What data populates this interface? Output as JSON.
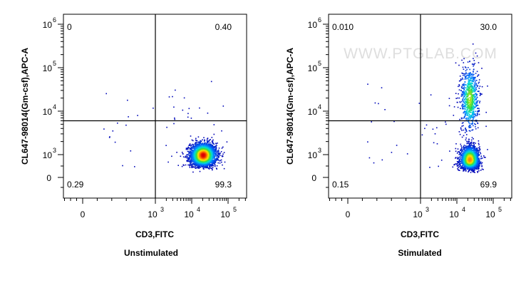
{
  "watermark": "WWW.PTGLAB.COM",
  "chart_data": [
    {
      "type": "scatter",
      "subtitle": "Unstimulated",
      "xlabel": "CD3,FITC",
      "ylabel": "CL647-98014(Gm-csf),APC-A",
      "x_ticks": [
        {
          "label": "0",
          "value": 0
        },
        {
          "label": "10",
          "exp": "3",
          "value": 1000
        },
        {
          "label": "10",
          "exp": "4",
          "value": 10000
        },
        {
          "label": "10",
          "exp": "5",
          "value": 100000
        }
      ],
      "y_ticks": [
        {
          "label": "0",
          "value": 0
        },
        {
          "label": "10",
          "exp": "3",
          "value": 1000
        },
        {
          "label": "10",
          "exp": "4",
          "value": 10000
        },
        {
          "label": "10",
          "exp": "5",
          "value": 100000
        },
        {
          "label": "10",
          "exp": "6",
          "value": 1000000
        }
      ],
      "gate": {
        "x": 1000,
        "y": 6000
      },
      "quadrants": {
        "top_left": "0",
        "top_right": "0.40",
        "bottom_left": "0.29",
        "bottom_right": "99.3"
      },
      "populations": [
        {
          "x_center": 20000,
          "y_center": 1000,
          "x_spread": 0.18,
          "y_spread": 0.14,
          "weight": 1.0
        }
      ]
    },
    {
      "type": "scatter",
      "subtitle": "Stimulated",
      "xlabel": "CD3,FITC",
      "ylabel": "CL647-98014(Gm-csf),APC-A",
      "x_ticks": [
        {
          "label": "0",
          "value": 0
        },
        {
          "label": "10",
          "exp": "3",
          "value": 1000
        },
        {
          "label": "10",
          "exp": "4",
          "value": 10000
        },
        {
          "label": "10",
          "exp": "5",
          "value": 100000
        }
      ],
      "y_ticks": [
        {
          "label": "0",
          "value": 0
        },
        {
          "label": "10",
          "exp": "3",
          "value": 1000
        },
        {
          "label": "10",
          "exp": "4",
          "value": 10000
        },
        {
          "label": "10",
          "exp": "5",
          "value": 100000
        },
        {
          "label": "10",
          "exp": "6",
          "value": 1000000
        }
      ],
      "gate": {
        "x": 1000,
        "y": 6000
      },
      "quadrants": {
        "top_left": "0.010",
        "top_right": "30.0",
        "bottom_left": "0.15",
        "bottom_right": "69.9"
      },
      "populations": [
        {
          "x_center": 22000,
          "y_center": 800,
          "x_spread": 0.13,
          "y_spread": 0.15,
          "weight": 0.7
        },
        {
          "x_center": 22000,
          "y_center": 20000,
          "x_spread": 0.12,
          "y_spread": 0.38,
          "weight": 0.3
        }
      ]
    }
  ]
}
